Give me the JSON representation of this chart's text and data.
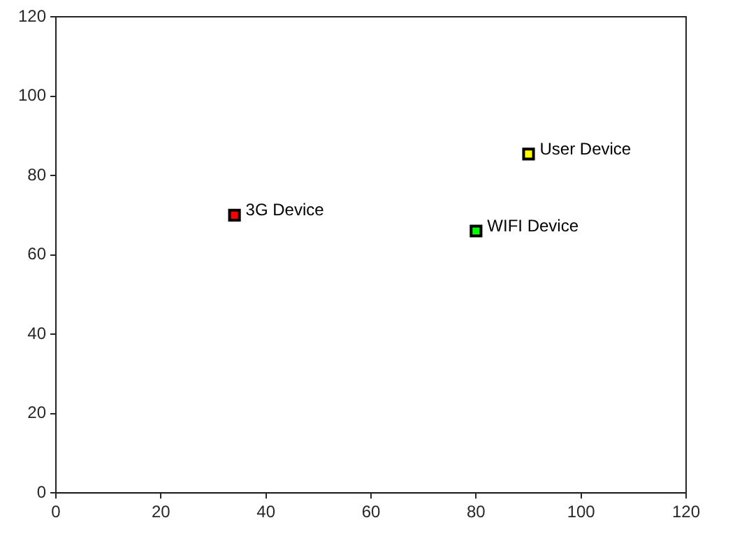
{
  "chart_data": {
    "type": "scatter",
    "xlim": [
      0,
      120
    ],
    "ylim": [
      0,
      120
    ],
    "xticks": [
      0,
      20,
      40,
      60,
      80,
      100,
      120
    ],
    "yticks": [
      0,
      20,
      40,
      60,
      80,
      100,
      120
    ],
    "grid": false,
    "legend": false,
    "marker": "square",
    "series": [
      {
        "name": "3G Device",
        "color": "#ff0000",
        "x": [
          34
        ],
        "values": [
          70
        ]
      },
      {
        "name": "WIFI Device",
        "color": "#00ff00",
        "x": [
          80
        ],
        "values": [
          66
        ]
      },
      {
        "name": "User Device",
        "color": "#ffff00",
        "x": [
          90
        ],
        "values": [
          85.4
        ]
      }
    ]
  }
}
